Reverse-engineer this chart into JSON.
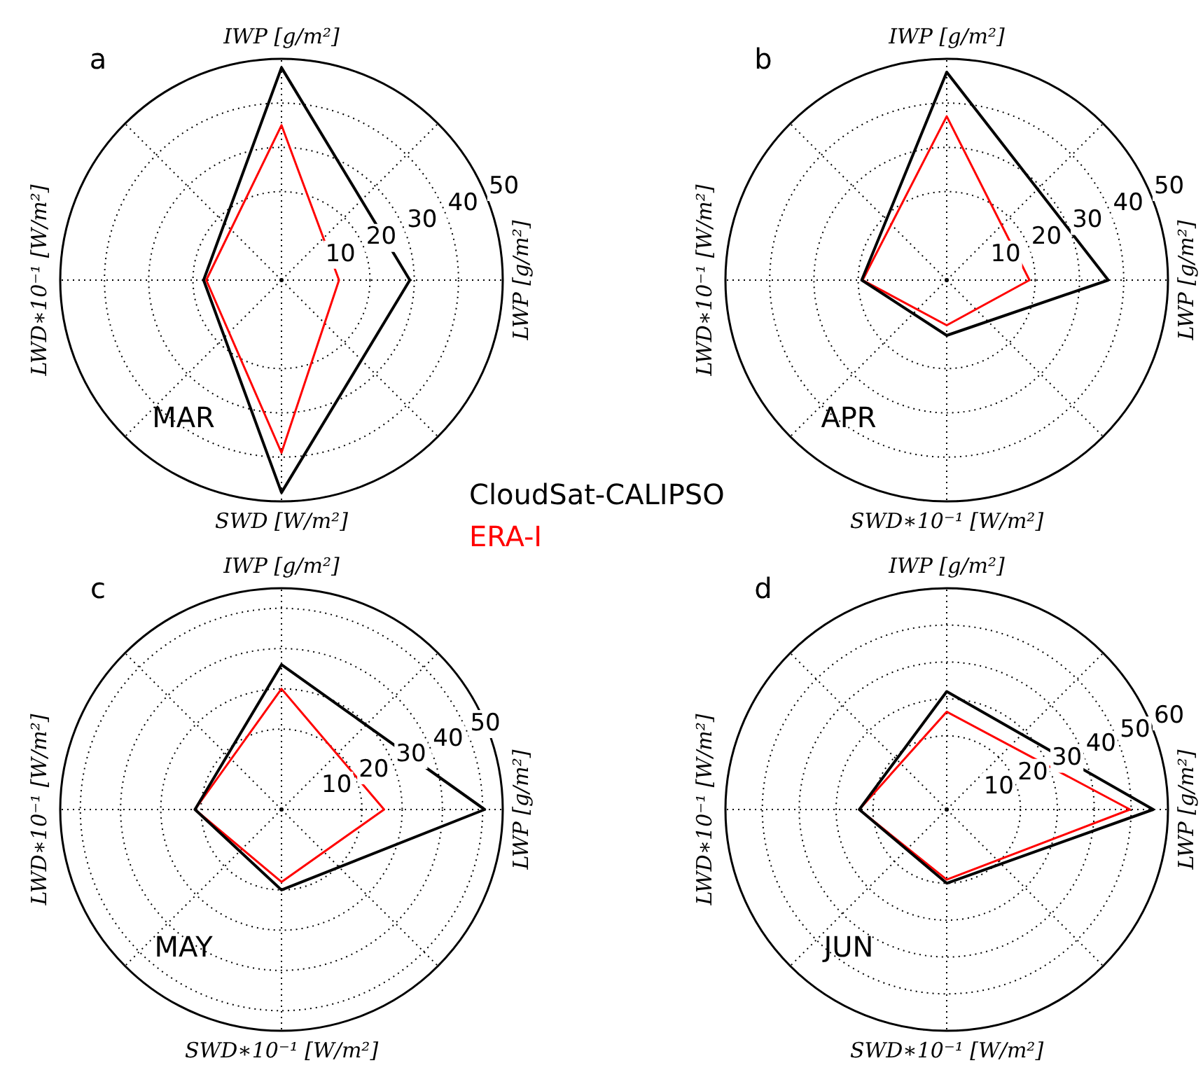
{
  "chart_data": [
    {
      "type": "radar",
      "title": "a",
      "annotations": [
        "MAR"
      ],
      "categories": [
        "IWP [g/m²]",
        "LWP [g/m²]",
        "SWD [W/m²]",
        "LWD∗10⁻¹ [W/m²]"
      ],
      "series": [
        {
          "name": "CloudSat-CALIPSO",
          "color": "#000000",
          "values": [
            48,
            29,
            48,
            17.6
          ]
        },
        {
          "name": "ERA-I",
          "color": "#ff0000",
          "values": [
            35,
            13,
            39,
            17
          ]
        }
      ],
      "ylim": [
        0,
        50
      ],
      "yticks": [
        10,
        20,
        30,
        40,
        50
      ],
      "grid": true,
      "legend": "bottom right"
    },
    {
      "type": "radar",
      "title": "b",
      "annotations": [
        "APR"
      ],
      "categories": [
        "IWP [g/m²]",
        "LWP [g/m²]",
        "SWD∗10⁻¹ [W/m²]",
        "LWD∗10⁻¹ [W/m²]"
      ],
      "series": [
        {
          "color": "#000000",
          "values": [
            47,
            36.5,
            12.5,
            19.2
          ]
        },
        {
          "color": "#ff0000",
          "values": [
            37,
            18.7,
            10.2,
            19
          ]
        }
      ],
      "ylim": [
        0,
        50
      ],
      "yticks": [
        10,
        20,
        30,
        40,
        50
      ],
      "grid": true
    },
    {
      "type": "radar",
      "title": "c",
      "annotations": [
        "MAY"
      ],
      "categories": [
        "IWP [g/m²]",
        "LWP [g/m²]",
        "SWD∗10⁻¹ [W/m²]",
        "LWD∗10⁻¹ [W/m²]"
      ],
      "series": [
        {
          "color": "#000000",
          "values": [
            36,
            50.5,
            20,
            21.5
          ]
        },
        {
          "color": "#ff0000",
          "values": [
            30,
            25.5,
            18,
            21.5
          ]
        }
      ],
      "ylim": [
        0,
        55
      ],
      "yticks": [
        10,
        20,
        30,
        40,
        50
      ],
      "grid": true
    },
    {
      "type": "radar",
      "title": "d",
      "annotations": [
        "JUN"
      ],
      "categories": [
        "IWP [g/m²]",
        "LWP [g/m²]",
        "SWD∗10⁻¹ [W/m²]",
        "LWD∗10⁻¹ [W/m²]"
      ],
      "series": [
        {
          "color": "#000000",
          "values": [
            32,
            56,
            20,
            23.7
          ]
        },
        {
          "color": "#ff0000",
          "values": [
            26.5,
            49.7,
            19,
            23.7
          ]
        }
      ],
      "ylim": [
        0,
        60
      ],
      "yticks": [
        10,
        20,
        30,
        40,
        50,
        60
      ],
      "grid": true
    }
  ]
}
